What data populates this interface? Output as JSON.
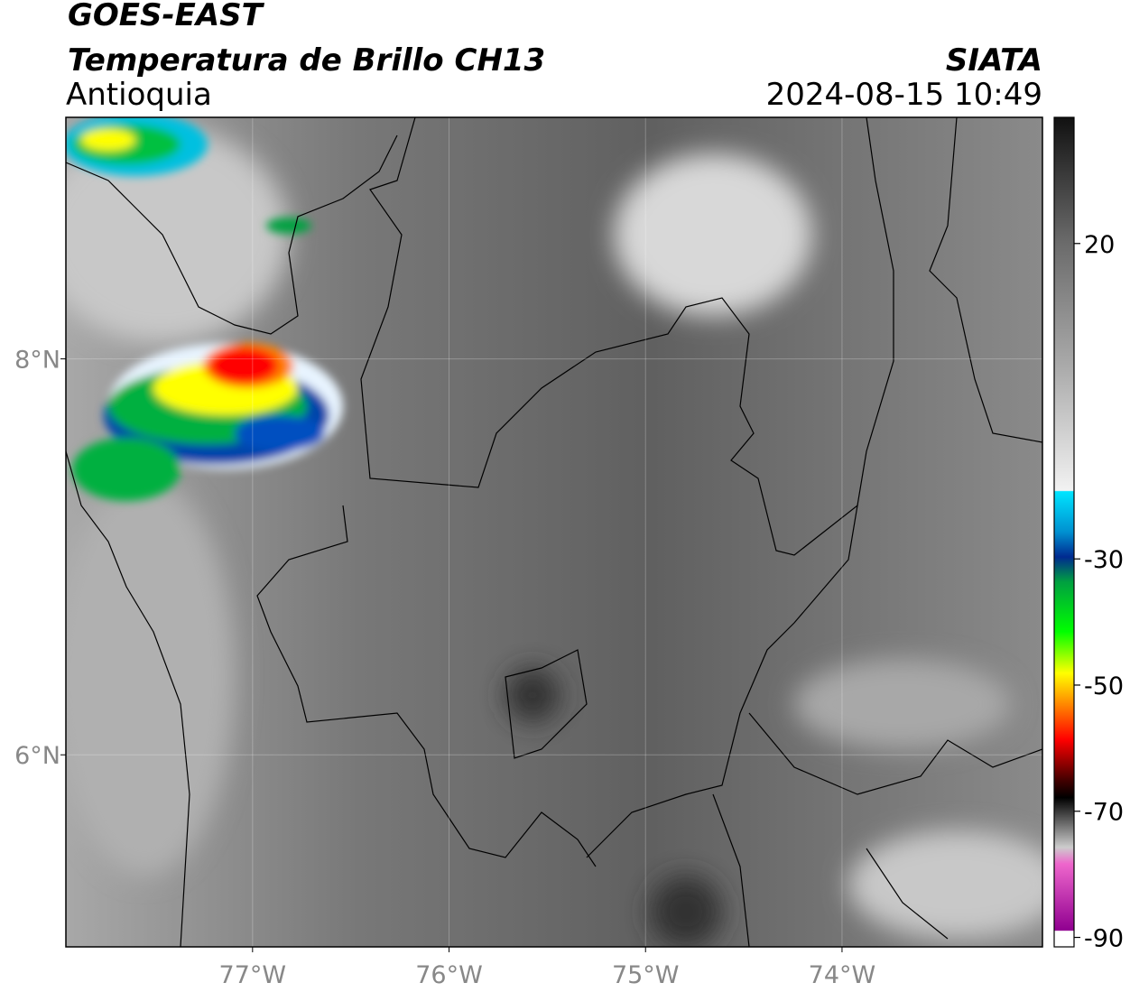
{
  "header": {
    "title": "GOES-EAST",
    "subtitle": "Temperatura de Brillo CH13",
    "region": "Antioquia",
    "source": "SIATA",
    "timestamp": "2024-08-15 10:49"
  },
  "map": {
    "xlim": [
      -77.95,
      -72.98
    ],
    "ylim": [
      5.03,
      9.22
    ],
    "xticks": [
      {
        "value": -77,
        "label": "77°W"
      },
      {
        "value": -76,
        "label": "76°W"
      },
      {
        "value": -75,
        "label": "75°W"
      },
      {
        "value": -74,
        "label": "74°W"
      }
    ],
    "yticks": [
      {
        "value": 8,
        "label": "8°N"
      },
      {
        "value": 6,
        "label": "6°N"
      }
    ]
  },
  "colorbar": {
    "lim": [
      -91.5,
      40
    ],
    "ticks": [
      20,
      -30,
      -50,
      -70,
      -90
    ]
  }
}
